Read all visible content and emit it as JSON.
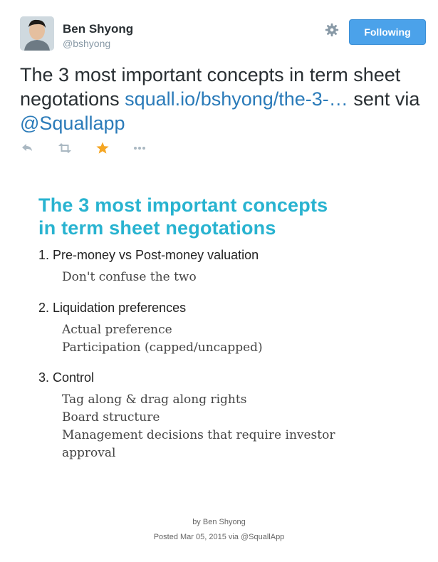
{
  "author": {
    "name": "Ben Shyong",
    "handle": "@bshyong"
  },
  "follow_button": {
    "label": "Following"
  },
  "tweet": {
    "text_before": "The 3 most important concepts in term sheet negotations ",
    "link": "squall.io/bshyong/the-3-…",
    "text_mid": " sent via ",
    "mention": "@Squallapp"
  },
  "icons": {
    "gear": "gear-icon",
    "reply": "reply-icon",
    "retweet": "retweet-icon",
    "favorite": "star-icon",
    "more": "more-icon"
  },
  "colors": {
    "follow_button": "#4ba2ea",
    "link": "#2b7bb9",
    "favorite_star": "#f5a623",
    "card_title": "#28b3d0"
  },
  "card": {
    "title_line1": "The 3 most important concepts",
    "title_line2": "in term sheet negotations",
    "sections": [
      {
        "heading": "1. Pre-money vs Post-money valuation",
        "items": [
          "Don't confuse the two"
        ]
      },
      {
        "heading": "2. Liquidation preferences",
        "items": [
          "Actual preference",
          "Participation (capped/uncapped)"
        ]
      },
      {
        "heading": "3. Control",
        "items": [
          "Tag along & drag along rights",
          "Board structure",
          "Management decisions that require investor",
          "approval"
        ]
      }
    ],
    "footer_by": "by Ben Shyong",
    "footer_posted": "Posted Mar 05, 2015 via @SquallApp"
  }
}
